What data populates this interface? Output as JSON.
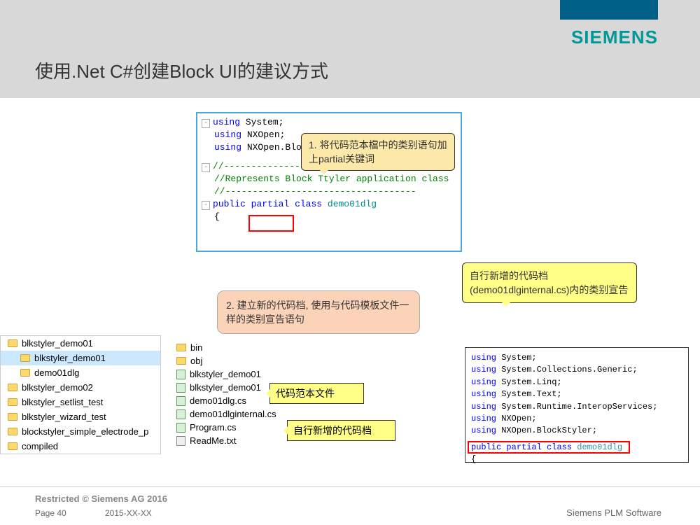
{
  "header": {
    "brand": "SIEMENS",
    "title": "使用.Net C#创建Block UI的建议方式"
  },
  "code1": {
    "line1_kw": "using",
    "line1_rest": " System;",
    "line2_kw": "using",
    "line2_rest": " NXOpen;",
    "line3_kw": "using",
    "line3_rest": " NXOpen.BlockS",
    "comment1": "//-----------------------------------",
    "comment2": "//Represents Block Ttyler application class",
    "comment3": "//-----------------------------------",
    "decl_kw1": "public",
    "decl_kw2": "partial",
    "decl_kw3": "class",
    "decl_cls": "demo01dlg",
    "brace": "{"
  },
  "callout1": "1. 将代码范本檔中的类别语句加上partial关键词",
  "callout2": "2. 建立新的代码档, 使用与代码模板文件一样的类别宣告语句",
  "callout3": "自行新增的代码档(demo01dlginternal.cs)内的类别宣告",
  "callout4": "代码范本文件",
  "callout5": "自行新增的代码档",
  "tree": {
    "items": [
      {
        "label": "blkstyler_demo01",
        "selected": false
      },
      {
        "label": "blkstyler_demo01",
        "sub": true,
        "selected": true
      },
      {
        "label": "demo01dlg",
        "sub": true,
        "selected": false
      },
      {
        "label": "blkstyler_demo02",
        "selected": false
      },
      {
        "label": "blkstyler_setlist_test",
        "selected": false
      },
      {
        "label": "blkstyler_wizard_test",
        "selected": false
      },
      {
        "label": "blockstyler_simple_electrode_p",
        "selected": false
      },
      {
        "label": "compiled",
        "selected": false
      }
    ]
  },
  "filelist": {
    "items": [
      {
        "label": "bin",
        "type": "folder"
      },
      {
        "label": "obj",
        "type": "folder"
      },
      {
        "label": "blkstyler_demo01",
        "type": "cs"
      },
      {
        "label": "blkstyler_demo01",
        "type": "cs"
      },
      {
        "label": "demo01dlg.cs",
        "type": "cs"
      },
      {
        "label": "demo01dlginternal.cs",
        "type": "cs"
      },
      {
        "label": "Program.cs",
        "type": "cs"
      },
      {
        "label": "ReadMe.txt",
        "type": "txt"
      }
    ]
  },
  "code2": {
    "l1": "using System;",
    "l2": "using System.Collections.Generic;",
    "l3": "using System.Linq;",
    "l4": "using System.Text;",
    "l5": "using System.Runtime.InteropServices;",
    "l6": "using NXOpen;",
    "l7": "using NXOpen.BlockStyler;",
    "decl_kw1": "public",
    "decl_kw2": "partial",
    "decl_kw3": "class",
    "decl_cls": "demo01dlg",
    "brace": "{"
  },
  "footer": {
    "restricted": "Restricted © Siemens AG 2016",
    "page": "Page 40",
    "date": "2015-XX-XX",
    "plm": "Siemens PLM Software"
  }
}
